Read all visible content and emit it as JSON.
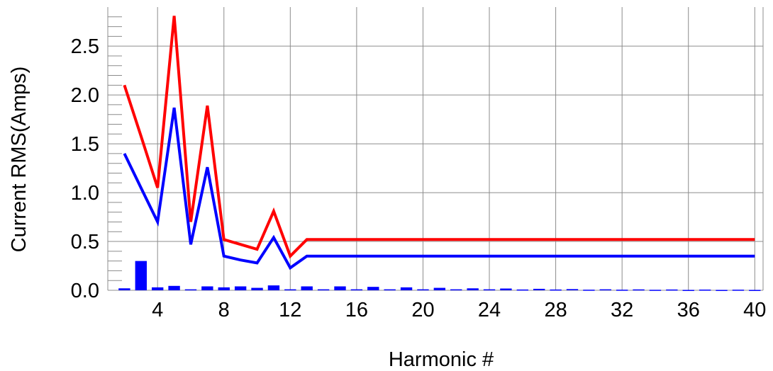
{
  "chart_data": {
    "type": "line",
    "title": "",
    "xlabel": "Harmonic #",
    "ylabel": "Current RMS(Amps)",
    "xlim": [
      1,
      40.5
    ],
    "ylim": [
      0,
      2.9
    ],
    "x_ticks": [
      4,
      8,
      12,
      16,
      20,
      24,
      28,
      32,
      36,
      40
    ],
    "x_tick_labels": [
      "4",
      "8",
      "12",
      "16",
      "20",
      "24",
      "28",
      "32",
      "36",
      "40"
    ],
    "y_ticks": [
      0,
      0.5,
      1.0,
      1.5,
      2.0,
      2.5
    ],
    "y_tick_labels": [
      "0.0",
      "0.5",
      "1.0",
      "1.5",
      "2.0",
      "2.5"
    ],
    "grid": true,
    "legend": "none",
    "series": [
      {
        "color": "#ff0000",
        "style": "line",
        "x": [
          2,
          3,
          4,
          5,
          6,
          7,
          8,
          9,
          10,
          11,
          12,
          13,
          14,
          15,
          16,
          17,
          18,
          19,
          20,
          21,
          22,
          23,
          24,
          25,
          26,
          27,
          28,
          29,
          30,
          31,
          32,
          33,
          34,
          35,
          36,
          37,
          38,
          39,
          40
        ],
        "values": [
          2.1,
          1.58,
          1.05,
          2.81,
          0.7,
          1.89,
          0.52,
          0.47,
          0.42,
          0.81,
          0.35,
          0.52,
          0.52,
          0.52,
          0.52,
          0.52,
          0.52,
          0.52,
          0.52,
          0.52,
          0.52,
          0.52,
          0.52,
          0.52,
          0.52,
          0.52,
          0.52,
          0.52,
          0.52,
          0.52,
          0.52,
          0.52,
          0.52,
          0.52,
          0.52,
          0.52,
          0.52,
          0.52,
          0.52
        ]
      },
      {
        "color": "#0000ff",
        "style": "line",
        "x": [
          2,
          3,
          4,
          5,
          6,
          7,
          8,
          9,
          10,
          11,
          12,
          13,
          14,
          15,
          16,
          17,
          18,
          19,
          20,
          21,
          22,
          23,
          24,
          25,
          26,
          27,
          28,
          29,
          30,
          31,
          32,
          33,
          34,
          35,
          36,
          37,
          38,
          39,
          40
        ],
        "values": [
          1.4,
          1.05,
          0.7,
          1.87,
          0.47,
          1.26,
          0.35,
          0.31,
          0.28,
          0.54,
          0.23,
          0.35,
          0.35,
          0.35,
          0.35,
          0.35,
          0.35,
          0.35,
          0.35,
          0.35,
          0.35,
          0.35,
          0.35,
          0.35,
          0.35,
          0.35,
          0.35,
          0.35,
          0.35,
          0.35,
          0.35,
          0.35,
          0.35,
          0.35,
          0.35,
          0.35,
          0.35,
          0.35,
          0.35
        ]
      },
      {
        "color": "#0000ff",
        "style": "bar",
        "x": [
          2,
          3,
          4,
          5,
          6,
          7,
          8,
          9,
          10,
          11,
          12,
          13,
          14,
          15,
          16,
          17,
          18,
          19,
          20,
          21,
          22,
          23,
          24,
          25,
          26,
          27,
          28,
          29,
          30,
          31,
          32,
          33,
          34,
          35,
          36,
          37,
          38,
          39,
          40
        ],
        "values": [
          0.02,
          0.3,
          0.03,
          0.045,
          0.01,
          0.04,
          0.03,
          0.04,
          0.025,
          0.05,
          0.01,
          0.04,
          0.01,
          0.04,
          0.01,
          0.035,
          0.01,
          0.03,
          0.01,
          0.025,
          0.01,
          0.02,
          0.01,
          0.018,
          0.008,
          0.015,
          0.008,
          0.012,
          0.006,
          0.01,
          0.006,
          0.009,
          0.005,
          0.008,
          0.004,
          0.007,
          0.004,
          0.006,
          0.004
        ]
      }
    ]
  }
}
